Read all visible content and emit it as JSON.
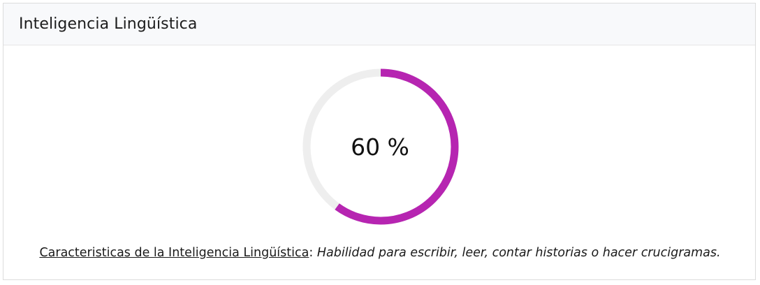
{
  "card": {
    "title": "Inteligencia Lingüística"
  },
  "gauge": {
    "value_percent": 60,
    "label": "60 %",
    "track_color": "#eeeeee",
    "progress_color": "#b625b1"
  },
  "description": {
    "link_text": "Caracteristicas de la Inteligencia Lingüística",
    "separator": ":",
    "text": "Habilidad para escribir, leer, contar historias o hacer crucigramas."
  }
}
